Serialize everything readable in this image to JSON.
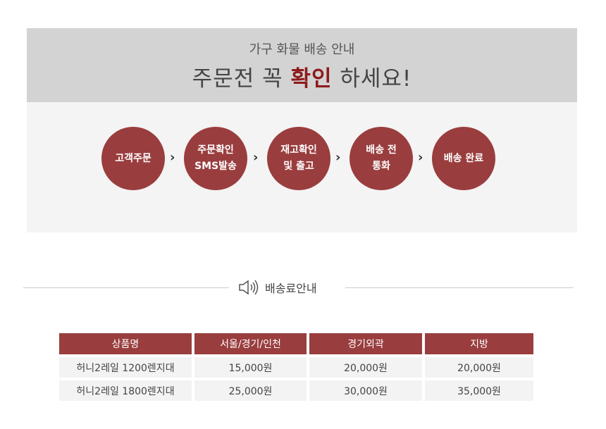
{
  "header": {
    "subtitle": "가구 화물 배송 안내",
    "title_pre": "주문전 꼭 ",
    "title_highlight": "확인",
    "title_post": " 하세요!"
  },
  "steps": [
    "고객주문",
    "주문확인\nSMS발송",
    "재고확인\n및 출고",
    "배송 전\n통화",
    "배송 완료"
  ],
  "arrow": "›",
  "section": {
    "title": "배송료안내",
    "icon": "speaker-icon"
  },
  "table": {
    "headers": [
      "상품명",
      "서울/경기/인천",
      "경기외곽",
      "지방"
    ],
    "rows": [
      [
        "허니2레일 1200렌지대",
        "15,000원",
        "20,000원",
        "20,000원"
      ],
      [
        "허니2레일 1800렌지대",
        "25,000원",
        "30,000원",
        "35,000원"
      ]
    ]
  },
  "colors": {
    "accent": "#9a3d3e",
    "highlight": "#8e1b1b"
  }
}
